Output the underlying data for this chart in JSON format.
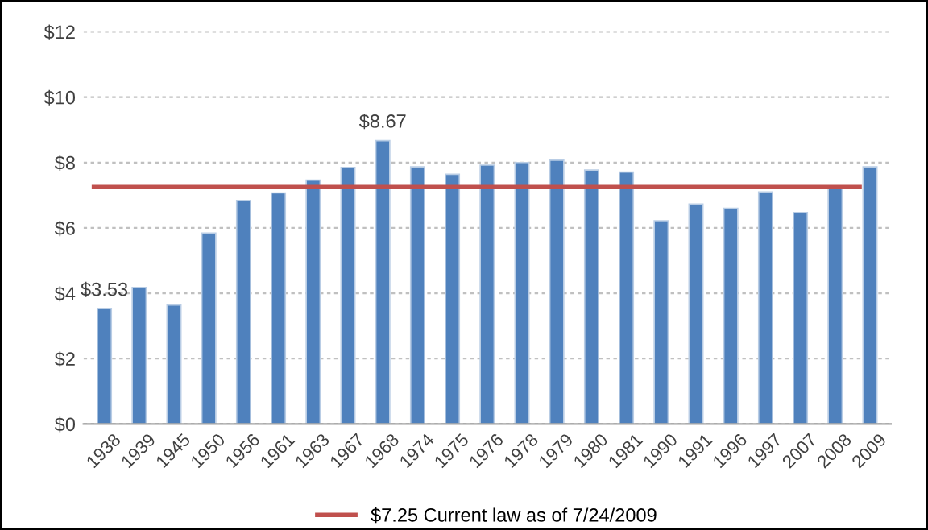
{
  "chart_data": {
    "type": "bar",
    "categories": [
      "1938",
      "1939",
      "1945",
      "1950",
      "1956",
      "1961",
      "1963",
      "1967",
      "1968",
      "1974",
      "1975",
      "1976",
      "1978",
      "1979",
      "1980",
      "1981",
      "1990",
      "1991",
      "1996",
      "1997",
      "2007",
      "2008",
      "2009"
    ],
    "values": [
      3.53,
      4.18,
      3.64,
      5.84,
      6.84,
      7.07,
      7.46,
      7.85,
      8.67,
      7.87,
      7.64,
      7.92,
      8.0,
      8.07,
      7.77,
      7.71,
      6.22,
      6.73,
      6.6,
      7.1,
      6.47,
      7.23,
      7.87
    ],
    "color": "#4f81bd",
    "value_labels": [
      "$3.53",
      null,
      null,
      null,
      null,
      null,
      null,
      null,
      "$8.67",
      null,
      null,
      null,
      null,
      null,
      null,
      null,
      null,
      null,
      null,
      null,
      null,
      null,
      null
    ],
    "ylim": [
      0,
      12
    ],
    "yticks": [
      {
        "value": 0,
        "label": "$0"
      },
      {
        "value": 2,
        "label": "$2"
      },
      {
        "value": 4,
        "label": "$4"
      },
      {
        "value": 6,
        "label": "$6"
      },
      {
        "value": 8,
        "label": "$8"
      },
      {
        "value": 10,
        "label": "$10"
      },
      {
        "value": 12,
        "label": "$12"
      }
    ],
    "grid": "y",
    "ref_lines": [
      {
        "axis": "y",
        "value": 7.25,
        "label": "$7.25 Current law as of 7/24/2009",
        "color": "#c0504d"
      }
    ],
    "legend": "bottom"
  }
}
